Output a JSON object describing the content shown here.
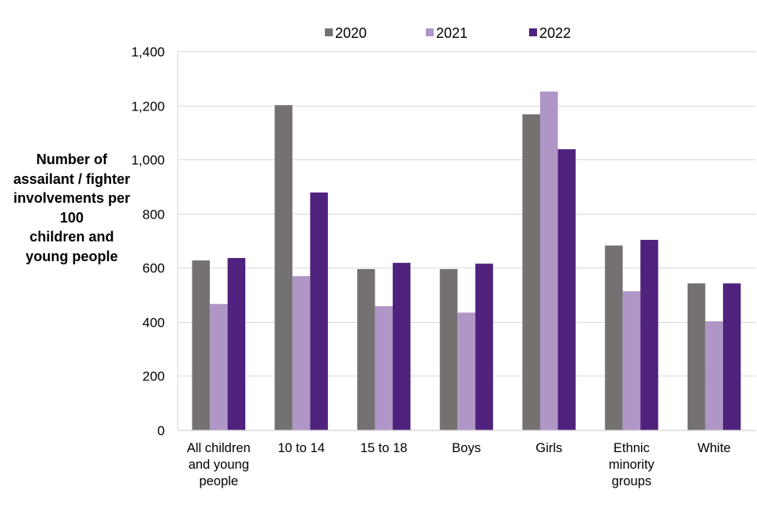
{
  "chart_data": {
    "type": "bar",
    "title": "",
    "xlabel": "",
    "ylabel_lines": [
      "Number of",
      "assailant / fighter",
      "involvements per",
      "100",
      "children and",
      "young people"
    ],
    "ylim": [
      0,
      1400
    ],
    "yticks": [
      0,
      200,
      400,
      600,
      800,
      1000,
      1200,
      1400
    ],
    "ytick_labels": [
      "0",
      "200",
      "400",
      "600",
      "800",
      "1,000",
      "1,200",
      "1,400"
    ],
    "grid": true,
    "legend_position": "top",
    "categories": [
      [
        "All children",
        "and young",
        "people"
      ],
      [
        "10 to 14"
      ],
      [
        "15 to 18"
      ],
      [
        "Boys"
      ],
      [
        "Girls"
      ],
      [
        "Ethnic",
        "minority",
        "groups"
      ],
      [
        "White"
      ]
    ],
    "series": [
      {
        "name": "2020",
        "color": "#767171",
        "values": [
          627,
          1201,
          595,
          595,
          1167,
          682,
          542
        ]
      },
      {
        "name": "2021",
        "color": "#AF96C6",
        "values": [
          466,
          569,
          458,
          434,
          1251,
          513,
          402
        ]
      },
      {
        "name": "2022",
        "color": "#4F227E",
        "values": [
          636,
          878,
          618,
          615,
          1038,
          703,
          542
        ]
      }
    ]
  }
}
